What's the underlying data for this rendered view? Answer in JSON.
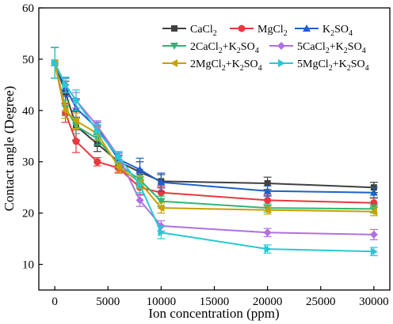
{
  "chart_data": {
    "type": "line",
    "xlabel": "Ion concentration (ppm)",
    "ylabel": "Contact angle (Degree)",
    "xlim": [
      -1500,
      31500
    ],
    "ylim": [
      5,
      60
    ],
    "xticks": [
      0,
      5000,
      10000,
      15000,
      20000,
      25000,
      30000
    ],
    "yticks": [
      10,
      20,
      30,
      40,
      50,
      60
    ],
    "x": [
      0,
      1000,
      2000,
      4000,
      6000,
      8000,
      10000,
      20000,
      30000
    ],
    "grid": false,
    "legend_position": "top-right",
    "series": [
      {
        "name_parts": [
          [
            "CaCl",
            ""
          ],
          [
            "2",
            "sub"
          ]
        ],
        "color": "#3f3f3f",
        "marker": "square",
        "values": [
          49.3,
          43.5,
          37.0,
          33.5,
          30.0,
          28.0,
          26.2,
          25.8,
          25.0
        ],
        "errors": [
          3.0,
          2.2,
          2.8,
          1.5,
          1.3,
          2.0,
          1.3,
          1.2,
          1.0
        ]
      },
      {
        "name_parts": [
          [
            "MgCl",
            ""
          ],
          [
            "2",
            "sub"
          ]
        ],
        "color": "#e8383d",
        "marker": "circle",
        "values": [
          49.3,
          39.5,
          34.0,
          30.0,
          28.8,
          25.0,
          24.0,
          22.5,
          22.0
        ],
        "errors": [
          3.0,
          1.8,
          2.2,
          0.8,
          1.0,
          1.5,
          1.2,
          1.0,
          0.9
        ]
      },
      {
        "name_parts": [
          [
            "K",
            ""
          ],
          [
            "2",
            "sub"
          ],
          [
            "SO",
            ""
          ],
          [
            "4",
            "sub"
          ]
        ],
        "color": "#1f5fc8",
        "marker": "triangle-up",
        "values": [
          49.3,
          44.5,
          40.5,
          36.5,
          30.5,
          28.5,
          26.0,
          24.3,
          24.0
        ],
        "errors": [
          3.0,
          1.8,
          1.8,
          1.2,
          1.2,
          2.2,
          1.8,
          1.0,
          1.0
        ]
      },
      {
        "name_parts": [
          [
            "2CaCl",
            ""
          ],
          [
            "2",
            "sub"
          ],
          [
            "+K",
            ""
          ],
          [
            "2",
            "sub"
          ],
          [
            "SO",
            ""
          ],
          [
            "4",
            "sub"
          ]
        ],
        "color": "#2fb575",
        "marker": "triangle-down",
        "values": [
          49.3,
          40.5,
          37.0,
          34.5,
          29.5,
          26.5,
          22.3,
          21.0,
          20.8
        ],
        "errors": [
          3.0,
          1.5,
          1.5,
          1.2,
          1.0,
          1.2,
          1.0,
          0.8,
          0.8
        ]
      },
      {
        "name_parts": [
          [
            "5CaCl",
            ""
          ],
          [
            "2",
            "sub"
          ],
          [
            "+K",
            ""
          ],
          [
            "2",
            "sub"
          ],
          [
            "SO",
            ""
          ],
          [
            "4",
            "sub"
          ]
        ],
        "color": "#b070e0",
        "marker": "diamond",
        "values": [
          49.3,
          45.0,
          42.0,
          37.0,
          31.0,
          22.5,
          17.5,
          16.2,
          15.8
        ],
        "errors": [
          3.0,
          1.5,
          1.5,
          1.0,
          1.0,
          1.2,
          1.0,
          0.8,
          1.0
        ]
      },
      {
        "name_parts": [
          [
            "2MgCl",
            ""
          ],
          [
            "2",
            "sub"
          ],
          [
            "+K",
            ""
          ],
          [
            "2",
            "sub"
          ],
          [
            "SO",
            ""
          ],
          [
            "4",
            "sub"
          ]
        ],
        "color": "#c8a000",
        "marker": "triangle-left",
        "values": [
          49.3,
          40.0,
          38.0,
          35.5,
          29.0,
          26.0,
          21.0,
          20.6,
          20.3
        ],
        "errors": [
          3.0,
          1.5,
          1.5,
          1.2,
          1.0,
          1.2,
          1.0,
          0.8,
          0.8
        ]
      },
      {
        "name_parts": [
          [
            "5MgCl",
            ""
          ],
          [
            "2",
            "sub"
          ],
          [
            "+K",
            ""
          ],
          [
            "2",
            "sub"
          ],
          [
            "SO",
            ""
          ],
          [
            "4",
            "sub"
          ]
        ],
        "color": "#26c9d6",
        "marker": "triangle-right",
        "values": [
          49.3,
          45.0,
          42.0,
          36.0,
          31.0,
          25.5,
          16.2,
          13.0,
          12.5
        ],
        "errors": [
          3.0,
          1.5,
          2.0,
          1.2,
          1.0,
          1.5,
          1.2,
          0.8,
          0.8
        ]
      }
    ]
  }
}
